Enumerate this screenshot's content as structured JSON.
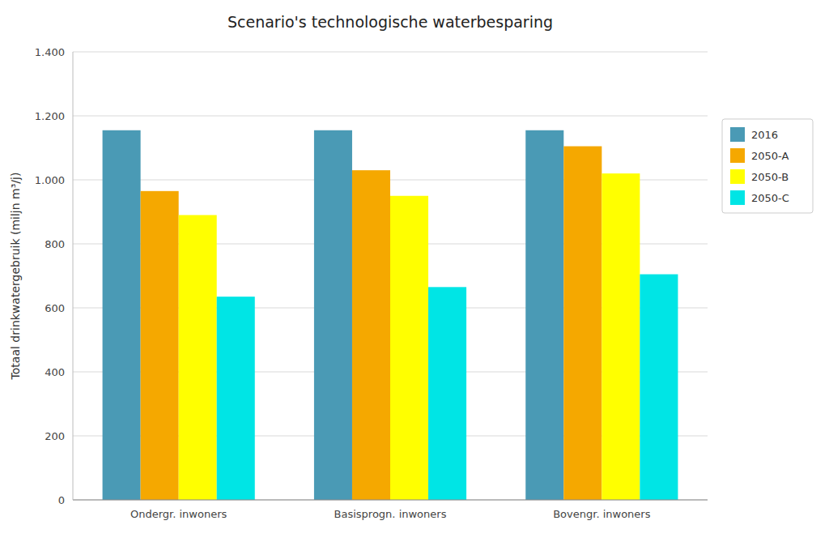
{
  "chart_data": {
    "type": "bar",
    "title": "Scenario's technologische waterbesparing",
    "ylabel": "Totaal drinkwatergebruik (miljn m³/j)",
    "categories": [
      "Ondergr. inwoners",
      "Basisprogn. inwoners",
      "Bovengr. inwoners"
    ],
    "series": [
      {
        "name": "2016",
        "color": "#4a9ab5",
        "values": [
          1155,
          1155,
          1155
        ]
      },
      {
        "name": "2050-A",
        "color": "#f5a800",
        "values": [
          965,
          1030,
          1105
        ]
      },
      {
        "name": "2050-B",
        "color": "#ffff00",
        "values": [
          890,
          950,
          1020
        ]
      },
      {
        "name": "2050-C",
        "color": "#00e5e5",
        "values": [
          635,
          665,
          705
        ]
      }
    ],
    "ylim": [
      0,
      1400
    ],
    "yticks": [
      0,
      200,
      400,
      600,
      800,
      {
        "value": 1000,
        "label": "1.000"
      },
      {
        "value": 1200,
        "label": "1.200"
      },
      {
        "value": 1400,
        "label": "1.400"
      }
    ],
    "grid": true,
    "legend": "right"
  }
}
